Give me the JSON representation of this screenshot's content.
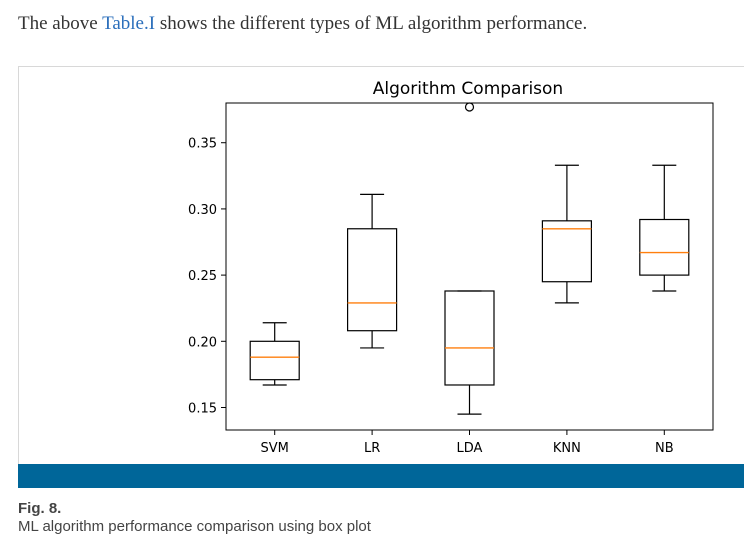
{
  "intro": {
    "before": "The above ",
    "link": "Table.I",
    "after": " shows the different types of ML algorithm performance."
  },
  "figure": {
    "label": "Fig. 8.",
    "caption": "ML algorithm performance comparison using box plot"
  },
  "colors": {
    "accent_bar": "#006699",
    "link": "#2a6ebb",
    "median": "#ff7f0e"
  },
  "chart_data": {
    "type": "box",
    "title": "Algorithm Comparison",
    "xlabel": "",
    "ylabel": "",
    "categories": [
      "SVM",
      "LR",
      "LDA",
      "KNN",
      "NB"
    ],
    "ylim": [
      0.133,
      0.38
    ],
    "yticks": [
      0.15,
      0.2,
      0.25,
      0.3,
      0.35
    ],
    "ytick_labels": [
      "0.15",
      "0.20",
      "0.25",
      "0.30",
      "0.35"
    ],
    "boxes": [
      {
        "name": "SVM",
        "whisker_low": 0.167,
        "q1": 0.171,
        "median": 0.188,
        "q3": 0.2,
        "whisker_high": 0.214,
        "outliers": []
      },
      {
        "name": "LR",
        "whisker_low": 0.195,
        "q1": 0.208,
        "median": 0.229,
        "q3": 0.285,
        "whisker_high": 0.311,
        "outliers": []
      },
      {
        "name": "LDA",
        "whisker_low": 0.145,
        "q1": 0.167,
        "median": 0.195,
        "q3": 0.238,
        "whisker_high": 0.238,
        "outliers": [
          0.377
        ]
      },
      {
        "name": "KNN",
        "whisker_low": 0.229,
        "q1": 0.245,
        "median": 0.285,
        "q3": 0.291,
        "whisker_high": 0.333,
        "outliers": []
      },
      {
        "name": "NB",
        "whisker_low": 0.238,
        "q1": 0.25,
        "median": 0.267,
        "q3": 0.292,
        "whisker_high": 0.333,
        "outliers": []
      }
    ],
    "grid": false,
    "legend": "none"
  }
}
